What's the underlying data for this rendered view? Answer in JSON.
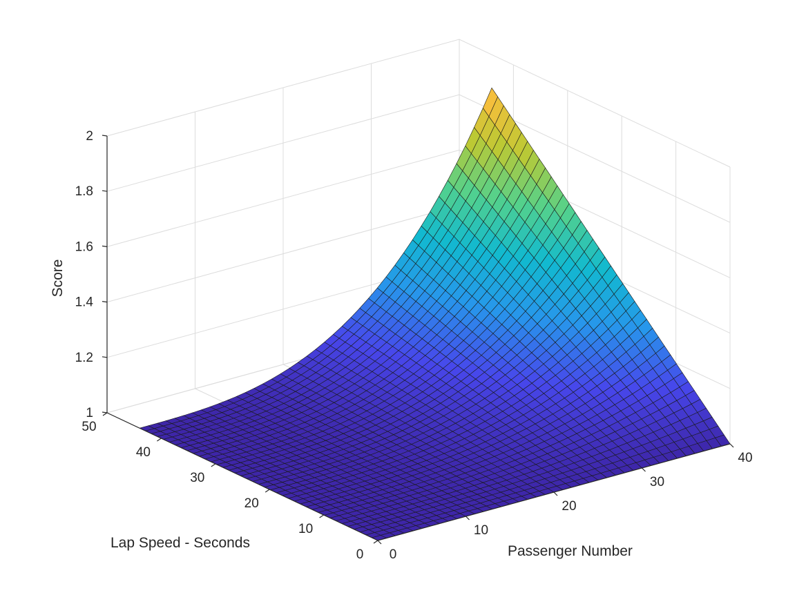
{
  "chart_data": {
    "type": "surface",
    "xlabel": "Passenger Number",
    "ylabel": "Lap Speed - Seconds",
    "zlabel": "Score",
    "xlim": [
      0,
      40
    ],
    "ylim": [
      0,
      50
    ],
    "zlim": [
      1,
      2
    ],
    "x_domain": [
      0,
      40
    ],
    "y_domain": [
      0,
      44
    ],
    "xticks": [
      "0",
      "10",
      "20",
      "30",
      "40"
    ],
    "yticks": [
      "0",
      "10",
      "20",
      "30",
      "40",
      "50"
    ],
    "zticks": [
      "1",
      "1.2",
      "1.4",
      "1.6",
      "1.8",
      "2"
    ],
    "grid": true,
    "colormap": "parula",
    "corner_values": [
      {
        "x": 0,
        "y": 0,
        "z": 1.0
      },
      {
        "x": 0,
        "y": 44,
        "z": 1.0
      },
      {
        "x": 40,
        "y": 0,
        "z": 1.0
      },
      {
        "x": 40,
        "y": 44,
        "z": 1.88
      }
    ]
  }
}
